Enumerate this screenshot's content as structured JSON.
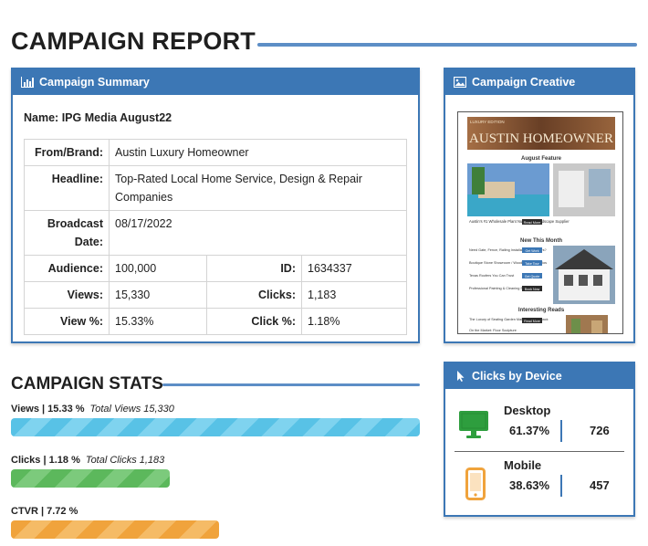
{
  "report": {
    "title": "CAMPAIGN REPORT"
  },
  "summary": {
    "header": "Campaign Summary",
    "header_icon": "bar-chart-icon",
    "name_label": "Name:",
    "name_value": "IPG Media August22",
    "from_label": "From/Brand:",
    "from_value": "Austin Luxury Homeowner",
    "headline_label": "Headline:",
    "headline_value": "Top-Rated Local Home Service, Design & Repair Companies",
    "broadcast_label": "Broadcast Date:",
    "broadcast_value": "08/17/2022",
    "audience_label": "Audience:",
    "audience_value": "100,000",
    "id_label": "ID:",
    "id_value": "1634337",
    "views_label": "Views:",
    "views_value": "15,330",
    "clicks_label": "Clicks:",
    "clicks_value": "1,183",
    "viewpct_label": "View %:",
    "viewpct_value": "15.33%",
    "clickpct_label": "Click %:",
    "clickpct_value": "1.18%"
  },
  "creative": {
    "header": "Campaign Creative",
    "header_icon": "image-icon",
    "brand_tag": "LUXURY EDITION",
    "masthead": "AUSTIN HOMEOWNER",
    "feature_heading": "August Feature",
    "feature_caption": "Austin's #1 Wholesale Plant Nursery & Landscape Supplier",
    "read_more": "Read More",
    "new_heading": "New This Month",
    "new_items": [
      "Need Gate, Fence, Railing Installation or Repairs?",
      "Boutique Stone Showroom / Woodworking Studios",
      "Texas Roofers You Can Trust",
      "Professional Painting & Cleaning Services"
    ],
    "new_buttons": [
      "Get Work",
      "Take Tour",
      "Get Quote",
      "Book Now"
    ],
    "interesting_heading": "Interesting Reads",
    "interesting_items": [
      "The Luxury of Seating Garden Making a Comeback",
      "On the Market: Floor Sculpture"
    ],
    "colors": {
      "masthead_bg": "#7a4a2c",
      "accent": "#3c77b5"
    }
  },
  "stats": {
    "title": "CAMPAIGN STATS",
    "views": {
      "label": "Views | 15.33 %",
      "total": "Total Views 15,330",
      "fill": 1.0
    },
    "clicks": {
      "label": "Clicks | 1.18 %",
      "total": "Total Clicks 1,183",
      "fill": 0.388
    },
    "ctvr": {
      "label": "CTVR | 7.72 %",
      "fill": 0.509
    }
  },
  "devices": {
    "header": "Clicks by Device",
    "header_icon": "cursor-icon",
    "desktop": {
      "name": "Desktop",
      "pct": "61.37%",
      "count": "726",
      "icon": "monitor-icon",
      "color": "#2e9e3e"
    },
    "mobile": {
      "name": "Mobile",
      "pct": "38.63%",
      "count": "457",
      "icon": "phone-icon",
      "color": "#f0a33c"
    }
  },
  "colors": {
    "brand_blue": "#3c77b5",
    "views_bar": "#58c2e6",
    "clicks_bar": "#5cb85c",
    "ctvr_bar": "#f0a33c"
  }
}
